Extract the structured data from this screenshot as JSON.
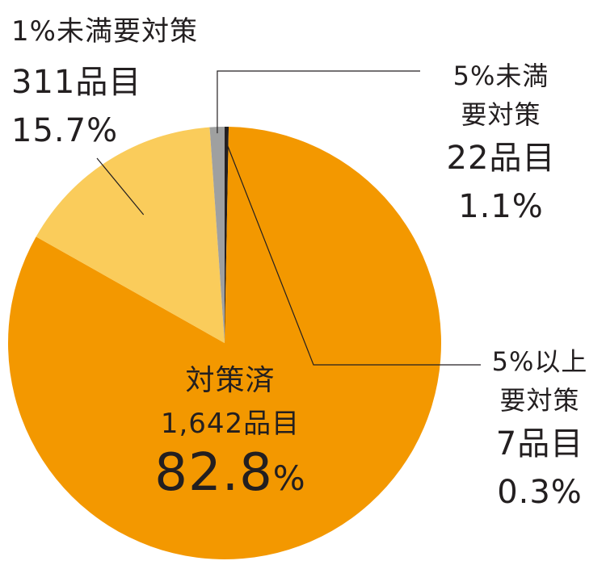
{
  "chart_data": {
    "type": "pie",
    "slices": [
      {
        "key": "over5",
        "name_line1": "5%以上",
        "name_line2": "要対策",
        "count": "7品目",
        "percent": "0.3%",
        "value": 0.3,
        "color": "#231f20"
      },
      {
        "key": "done",
        "name_line1": "対策済",
        "name_line2": "",
        "count": "1,642品目",
        "percent_number": "82.8",
        "percent_symbol": "%",
        "value": 82.8,
        "color": "#f39800"
      },
      {
        "key": "under1",
        "name_line1": "1%未満要対策",
        "name_line2": "",
        "count": "311品目",
        "percent": "15.7%",
        "value": 15.7,
        "color": "#facc5b"
      },
      {
        "key": "under5",
        "name_line1": "5%未満",
        "name_line2": "要対策",
        "count": "22品目",
        "percent": "1.1%",
        "value": 1.1,
        "color": "#9fa0a0"
      }
    ]
  }
}
